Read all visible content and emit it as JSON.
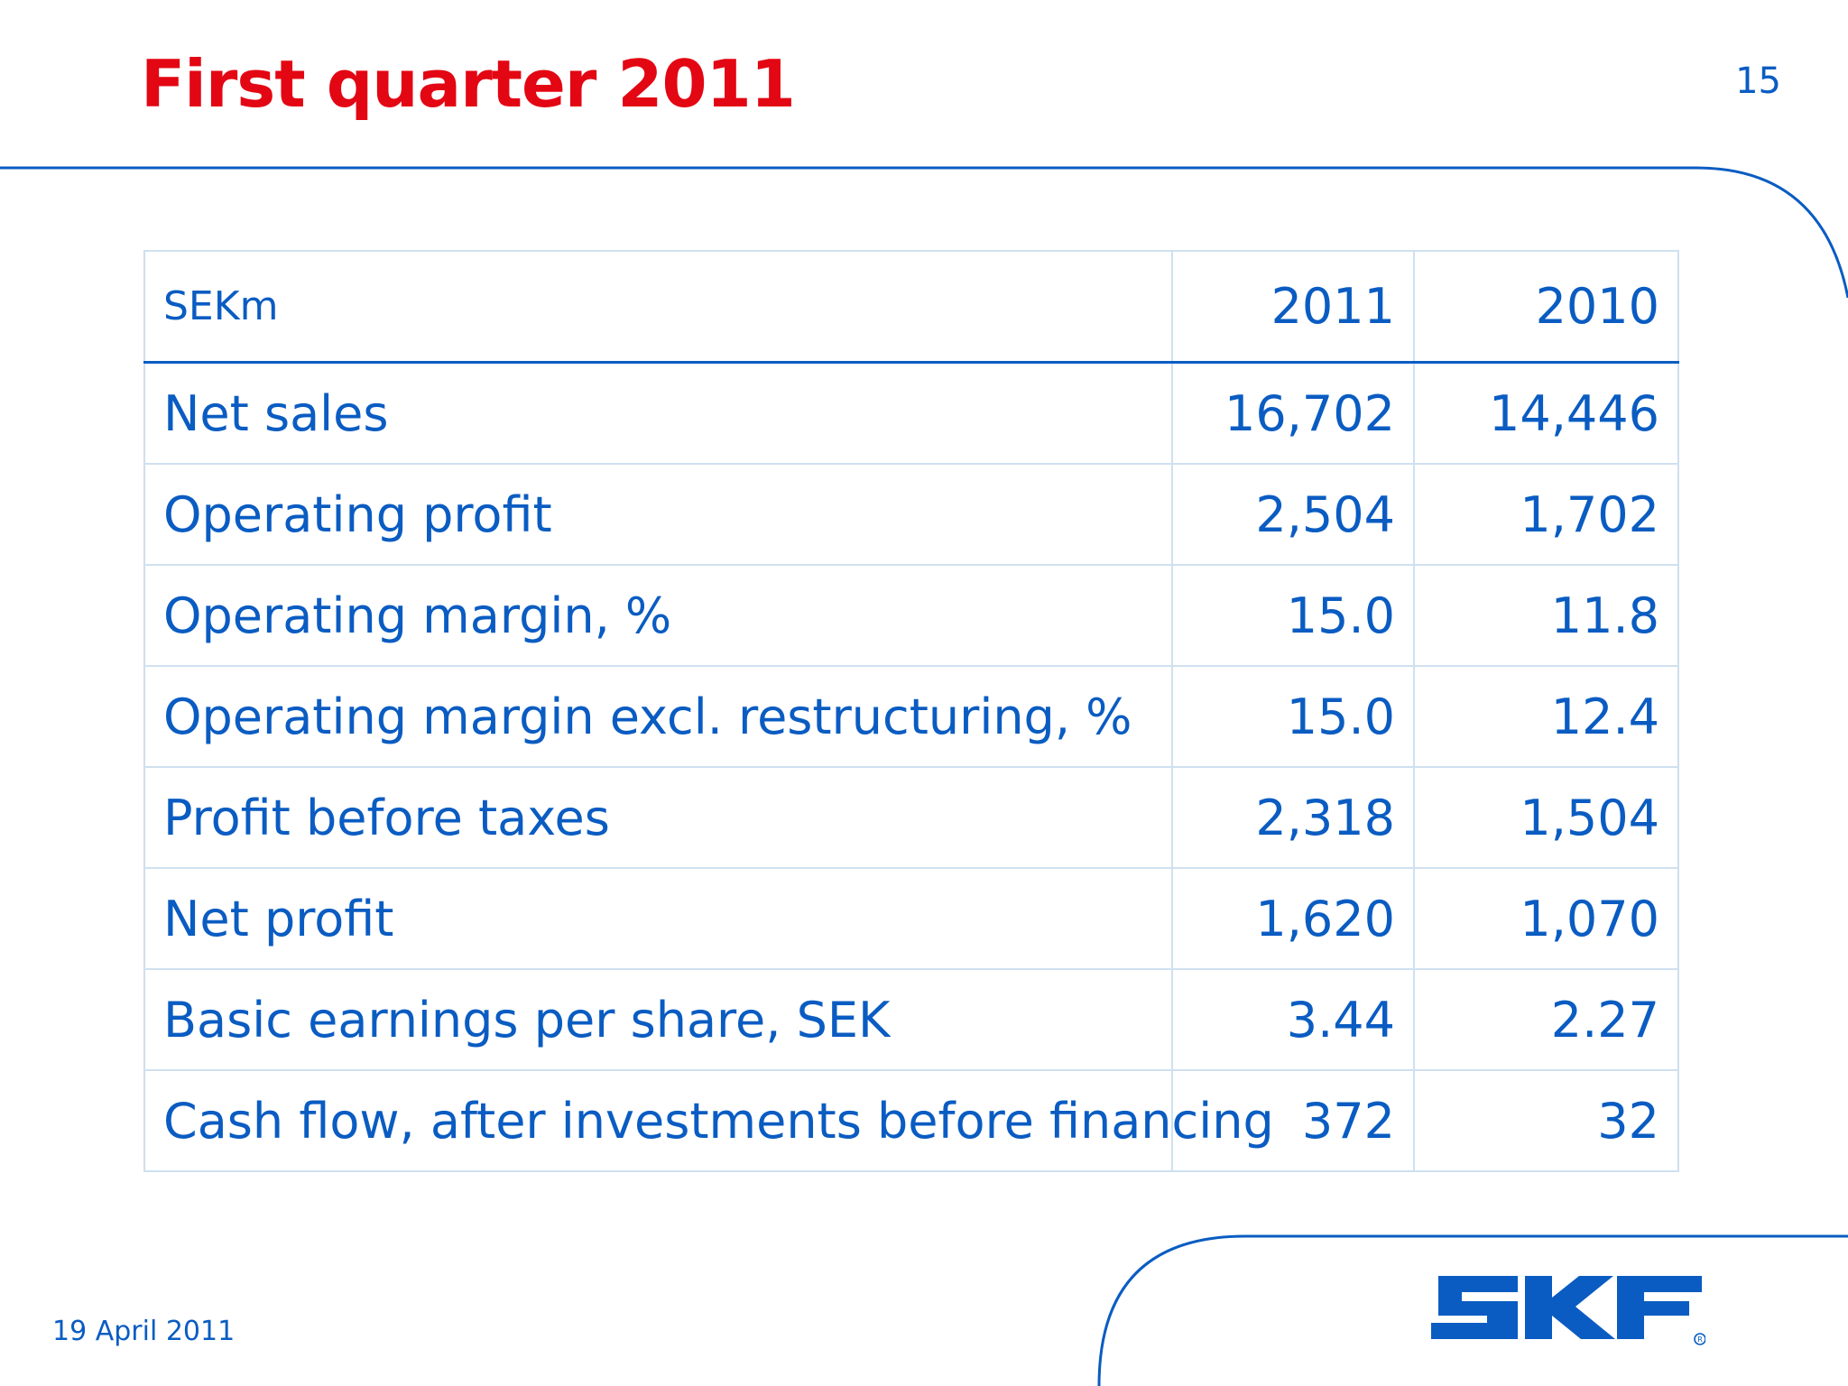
{
  "slide": {
    "title": "First quarter 2011",
    "page_number": "15",
    "date": "19 April 2011"
  },
  "table": {
    "unit_header": "SEKm",
    "year_headers": [
      "2011",
      "2010"
    ],
    "rows": [
      {
        "label": "Net sales",
        "v2011": "16,702",
        "v2010": "14,446"
      },
      {
        "label": "Operating profit",
        "v2011": "2,504",
        "v2010": "1,702"
      },
      {
        "label": "Operating margin, %",
        "v2011": "15.0",
        "v2010": "11.8"
      },
      {
        "label": "Operating margin excl. restructuring, %",
        "v2011": "15.0",
        "v2010": "12.4"
      },
      {
        "label": "Profit before taxes",
        "v2011": "2,318",
        "v2010": "1,504"
      },
      {
        "label": "Net profit",
        "v2011": "1,620",
        "v2010": "1,070"
      },
      {
        "label": "Basic earnings per share, SEK",
        "v2011": "3.44",
        "v2010": "2.27"
      },
      {
        "label": "Cash flow, after investments before financing",
        "v2011": "372",
        "v2010": "32"
      }
    ]
  },
  "logo": {
    "text": "SKF",
    "registered_mark": "®"
  },
  "colors": {
    "title": "#e30613",
    "text": "#0a5cc2",
    "grid": "#cfe0f0",
    "logo": "#0a5cc2"
  }
}
